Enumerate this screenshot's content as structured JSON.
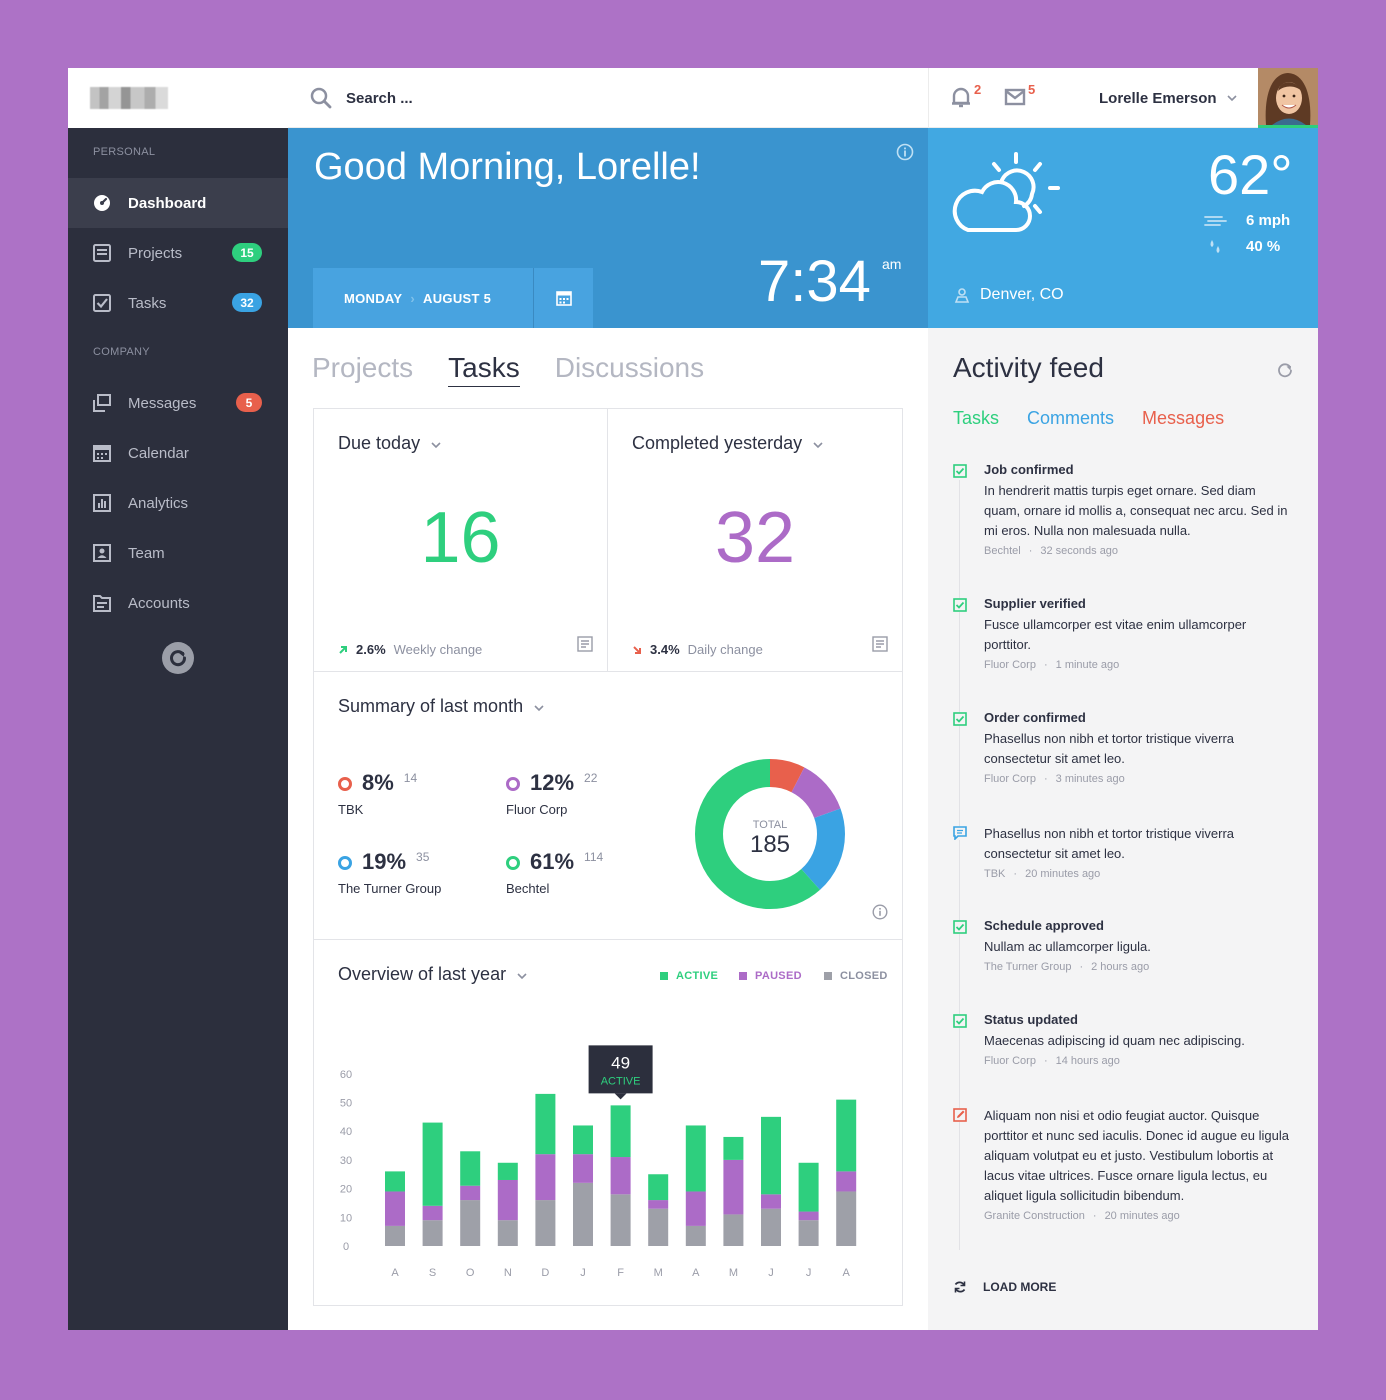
{
  "sidebar": {
    "section_personal": "PERSONAL",
    "section_company": "COMPANY",
    "items": [
      {
        "label": "Dashboard",
        "icon": "dashboard-icon",
        "badge": "",
        "active": true
      },
      {
        "label": "Projects",
        "icon": "projects-icon",
        "badge": "15",
        "badge_color": "#2ecf7e"
      },
      {
        "label": "Tasks",
        "icon": "tasks-icon",
        "badge": "32",
        "badge_color": "#3aa3e3"
      },
      {
        "label": "Messages",
        "icon": "messages-icon",
        "badge": "5",
        "badge_color": "#e8604c"
      },
      {
        "label": "Calendar",
        "icon": "calendar-icon",
        "badge": ""
      },
      {
        "label": "Analytics",
        "icon": "analytics-icon",
        "badge": ""
      },
      {
        "label": "Team",
        "icon": "team-icon",
        "badge": ""
      },
      {
        "label": "Accounts",
        "icon": "accounts-icon",
        "badge": ""
      }
    ]
  },
  "topbar": {
    "search_placeholder": "Search ...",
    "notifications_count": "2",
    "messages_count": "5",
    "user_name": "Lorelle Emerson"
  },
  "greeting": {
    "title": "Good Morning, Lorelle!",
    "day": "MONDAY",
    "date": "AUGUST 5",
    "time": "7:34",
    "ampm": "am"
  },
  "weather": {
    "temperature": "62°",
    "wind": "6 mph",
    "humidity": "40 %",
    "location": "Denver, CO"
  },
  "tabs": [
    {
      "label": "Projects",
      "active": false
    },
    {
      "label": "Tasks",
      "active": true
    },
    {
      "label": "Discussions",
      "active": false
    }
  ],
  "due_today": {
    "title_prefix": "Due",
    "title_period": "today",
    "value": "16",
    "change_pct": "2.6%",
    "change_label": "Weekly change",
    "color": "#2ecf7e"
  },
  "completed": {
    "title_prefix": "Completed",
    "title_period": "yesterday",
    "value": "32",
    "change_pct": "3.4%",
    "change_label": "Daily change",
    "color": "#ac6bc7"
  },
  "summary": {
    "title_prefix": "Summary of",
    "title_period": "last month",
    "total_label": "TOTAL",
    "total_value": "185",
    "items": [
      {
        "pct": "8%",
        "count": "14",
        "name": "TBK",
        "color": "#e8604c"
      },
      {
        "pct": "12%",
        "count": "22",
        "name": "Fluor Corp",
        "color": "#ac6bc7"
      },
      {
        "pct": "19%",
        "count": "35",
        "name": "The Turner Group",
        "color": "#3aa3e3"
      },
      {
        "pct": "61%",
        "count": "114",
        "name": "Bechtel",
        "color": "#2ecf7e"
      }
    ]
  },
  "overview": {
    "title_prefix": "Overview of",
    "title_period": "last year",
    "legend": [
      {
        "label": "ACTIVE",
        "color": "#2ecf7e"
      },
      {
        "label": "PAUSED",
        "color": "#ac6bc7"
      },
      {
        "label": "CLOSED",
        "color": "#9ea0a8"
      }
    ],
    "tooltip_value": "49",
    "tooltip_label": "ACTIVE"
  },
  "chart_data": [
    {
      "type": "pie",
      "title": "Summary of last month",
      "categories": [
        "TBK",
        "Fluor Corp",
        "The Turner Group",
        "Bechtel"
      ],
      "values": [
        14,
        22,
        35,
        114
      ],
      "percent": [
        8,
        12,
        19,
        61
      ],
      "total": 185
    },
    {
      "type": "bar",
      "title": "Overview of last year",
      "stacked": true,
      "categories": [
        "A",
        "S",
        "O",
        "N",
        "D",
        "J",
        "F",
        "M",
        "A",
        "M",
        "J",
        "J",
        "A"
      ],
      "ylim": [
        0,
        60
      ],
      "yticks": [
        0,
        10,
        20,
        30,
        40,
        50,
        60
      ],
      "series": [
        {
          "name": "CLOSED",
          "values": [
            7,
            9,
            16,
            9,
            16,
            22,
            18,
            13,
            7,
            11,
            13,
            9,
            19
          ]
        },
        {
          "name": "PAUSED",
          "values": [
            12,
            5,
            5,
            14,
            16,
            10,
            13,
            3,
            12,
            19,
            5,
            3,
            7
          ]
        },
        {
          "name": "ACTIVE",
          "values": [
            7,
            29,
            12,
            6,
            21,
            10,
            18,
            9,
            23,
            8,
            27,
            17,
            25
          ]
        }
      ]
    }
  ],
  "feed": {
    "title": "Activity feed",
    "tabs": [
      {
        "label": "Tasks",
        "color": "#2ecf7e"
      },
      {
        "label": "Comments",
        "color": "#3aa3e3"
      },
      {
        "label": "Messages",
        "color": "#e8604c"
      }
    ],
    "items": [
      {
        "kind": "check",
        "title": "Job confirmed",
        "text": "In hendrerit mattis turpis eget ornare. Sed diam quam, ornare id mollis a, consequat nec arcu. Sed in mi eros. Nulla non malesuada nulla.",
        "source": "Bechtel",
        "time": "32 seconds ago"
      },
      {
        "kind": "check",
        "title": "Supplier verified",
        "text": "Fusce ullamcorper est vitae enim ullamcorper porttitor.",
        "source": "Fluor Corp",
        "time": "1 minute ago"
      },
      {
        "kind": "check",
        "title": "Order confirmed",
        "text": "Phasellus non nibh et tortor tristique viverra consectetur sit amet leo.",
        "source": "Fluor Corp",
        "time": "3 minutes ago"
      },
      {
        "kind": "comment",
        "title": "",
        "text": "Phasellus non nibh et tortor tristique viverra consectetur sit amet leo.",
        "source": "TBK",
        "time": "20 minutes ago"
      },
      {
        "kind": "check",
        "title": "Schedule approved",
        "text": "Nullam ac ullamcorper ligula.",
        "source": "The Turner Group",
        "time": "2 hours ago"
      },
      {
        "kind": "check",
        "title": "Status updated",
        "text": "Maecenas adipiscing id quam nec adipiscing.",
        "source": "Fluor Corp",
        "time": "14 hours ago"
      },
      {
        "kind": "message",
        "title": "",
        "text": "Aliquam non nisi et odio feugiat auctor. Quisque porttitor et nunc sed iaculis. Donec id augue eu ligula aliquam volutpat eu et justo. Vestibulum lobortis at lacus vitae ultrices. Fusce ornare ligula lectus, eu aliquet ligula sollicitudin bibendum.",
        "source": "Granite Construction",
        "time": "20 minutes ago"
      }
    ],
    "load_more": "LOAD MORE"
  }
}
